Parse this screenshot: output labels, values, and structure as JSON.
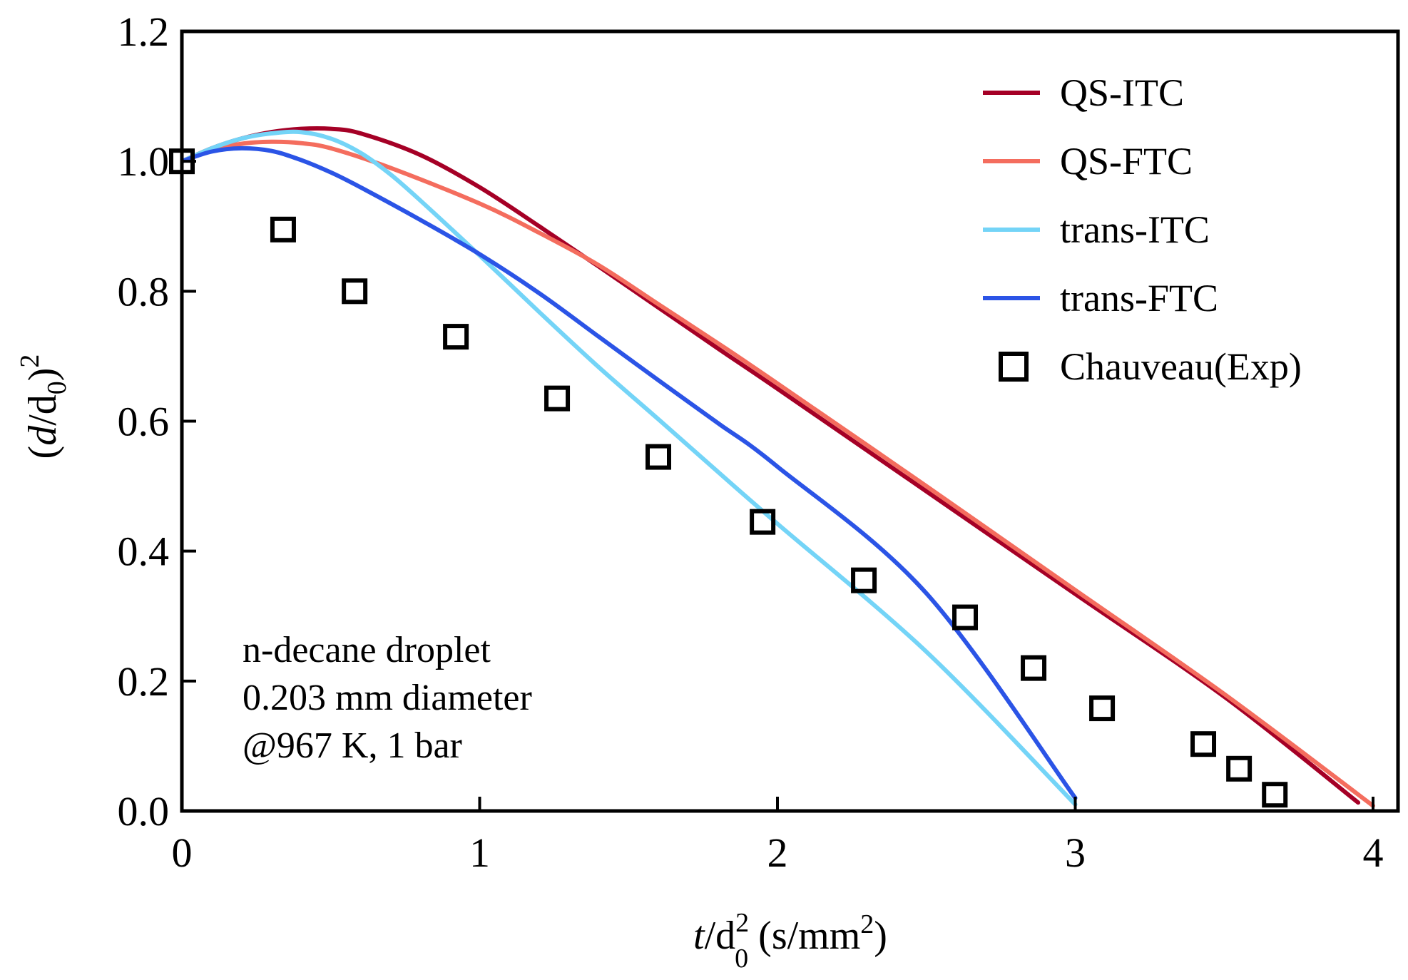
{
  "chart_data": {
    "type": "line",
    "xlabel": {
      "var": "t",
      "slash": "/d",
      "sub": "0",
      "sup": "2",
      "unit_open": " (s/mm",
      "unit_sup": "2",
      "unit_close": ")"
    },
    "ylabel": {
      "open": "(",
      "var": "d",
      "slash": "/d",
      "sub": "0",
      "close": ")",
      "sup": "2"
    },
    "xlim": [
      0,
      4.1
    ],
    "ylim": [
      0,
      1.2
    ],
    "xticks": [
      0,
      1,
      2,
      3,
      4
    ],
    "xtick_labels": [
      "0",
      "1",
      "2",
      "3",
      "4"
    ],
    "yticks": [
      0.0,
      0.2,
      0.4,
      0.6,
      0.8,
      1.0,
      1.2
    ],
    "ytick_labels": [
      "0.0",
      "0.2",
      "0.4",
      "0.6",
      "0.8",
      "1.0",
      "1.2"
    ],
    "grid": false,
    "legend_position": "top-right",
    "series": [
      {
        "name": "QS-ITC",
        "color": "#a50026",
        "kind": "line",
        "x": [
          0,
          0.1,
          0.2,
          0.3,
          0.4,
          0.5,
          0.6,
          0.8,
          1.0,
          1.2,
          1.4,
          1.6,
          1.8,
          2.0,
          2.5,
          3.0,
          3.5,
          3.95
        ],
        "y": [
          1.0,
          1.02,
          1.035,
          1.045,
          1.05,
          1.05,
          1.043,
          1.01,
          0.96,
          0.9,
          0.838,
          0.775,
          0.712,
          0.65,
          0.492,
          0.334,
          0.176,
          0.013
        ]
      },
      {
        "name": "QS-FTC",
        "color": "#f46d5e",
        "kind": "line",
        "x": [
          0,
          0.1,
          0.2,
          0.3,
          0.4,
          0.5,
          0.7,
          1.0,
          1.2,
          1.4,
          1.6,
          1.8,
          2.0,
          2.5,
          3.0,
          3.5,
          4.0
        ],
        "y": [
          1.0,
          1.017,
          1.027,
          1.03,
          1.028,
          1.02,
          0.99,
          0.935,
          0.89,
          0.84,
          0.78,
          0.72,
          0.658,
          0.5,
          0.34,
          0.18,
          0.008
        ]
      },
      {
        "name": "trans-ITC",
        "color": "#74d4f7",
        "kind": "line",
        "x": [
          0,
          0.1,
          0.2,
          0.3,
          0.4,
          0.5,
          0.6,
          0.7,
          0.8,
          1.0,
          1.2,
          1.4,
          1.6,
          1.8,
          2.0,
          2.5,
          3.0
        ],
        "y": [
          1.0,
          1.02,
          1.035,
          1.043,
          1.045,
          1.035,
          1.013,
          0.98,
          0.94,
          0.855,
          0.768,
          0.683,
          0.603,
          0.522,
          0.442,
          0.245,
          0.01
        ]
      },
      {
        "name": "trans-FTC",
        "color": "#2b54e6",
        "kind": "line",
        "x": [
          0,
          0.1,
          0.2,
          0.3,
          0.4,
          0.5,
          0.6,
          0.8,
          1.0,
          1.2,
          1.4,
          1.6,
          1.8,
          2.0,
          2.5,
          3.0
        ],
        "y": [
          1.0,
          1.015,
          1.02,
          1.016,
          1.002,
          0.983,
          0.96,
          0.91,
          0.857,
          0.797,
          0.73,
          0.663,
          0.597,
          0.53,
          0.335,
          0.02
        ]
      },
      {
        "name": "Chauveau(Exp)",
        "color": "#000000",
        "kind": "marker",
        "marker": "square-open",
        "x": [
          0.0,
          0.34,
          0.58,
          0.92,
          1.26,
          1.6,
          1.95,
          2.29,
          2.63,
          2.86,
          3.09,
          3.43,
          3.55,
          3.67
        ],
        "y": [
          1.0,
          0.895,
          0.8,
          0.73,
          0.635,
          0.545,
          0.445,
          0.355,
          0.298,
          0.22,
          0.158,
          0.103,
          0.065,
          0.025
        ]
      }
    ],
    "annotation": [
      "n-decane droplet",
      "0.203 mm diameter",
      "@967 K, 1 bar"
    ]
  }
}
